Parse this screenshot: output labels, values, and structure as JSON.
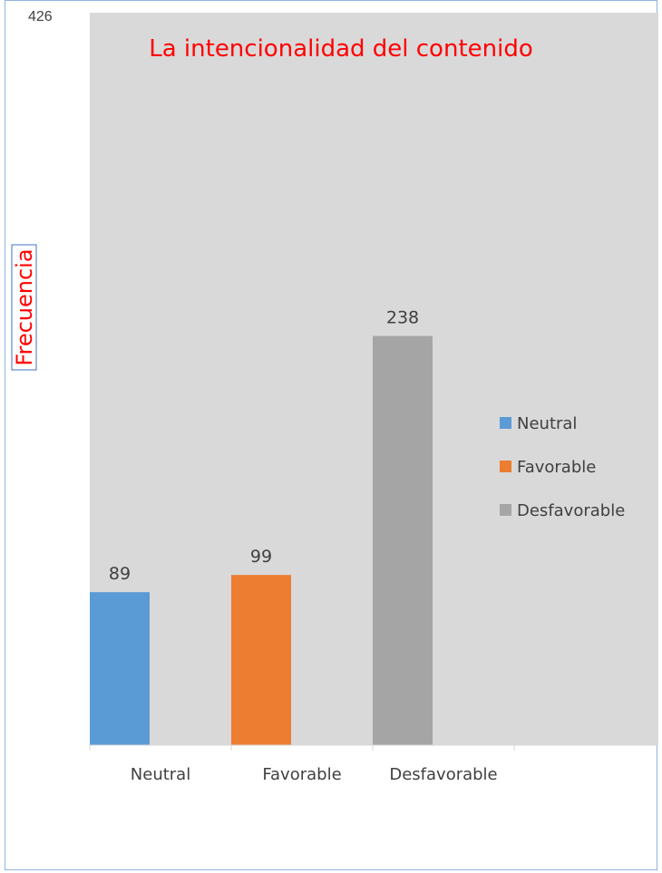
{
  "chart_data": {
    "type": "bar",
    "title": "La intencionalidad del contenido",
    "ylabel": "Frecuencia",
    "xlabel": "",
    "categories": [
      "Neutral",
      "Favorable",
      "Desfavorable"
    ],
    "values": [
      89,
      99,
      238
    ],
    "ylim": [
      0,
      426
    ],
    "y_max_tick": "426",
    "data_labels": [
      "89",
      "99",
      "238"
    ],
    "colors": [
      "#5b9bd5",
      "#ed7d31",
      "#a5a5a5"
    ],
    "plot_background": "#d9d9d9",
    "grid": false,
    "legend": {
      "placement": "right",
      "entries": [
        "Neutral",
        "Favorable",
        "Desfavorable"
      ]
    }
  }
}
